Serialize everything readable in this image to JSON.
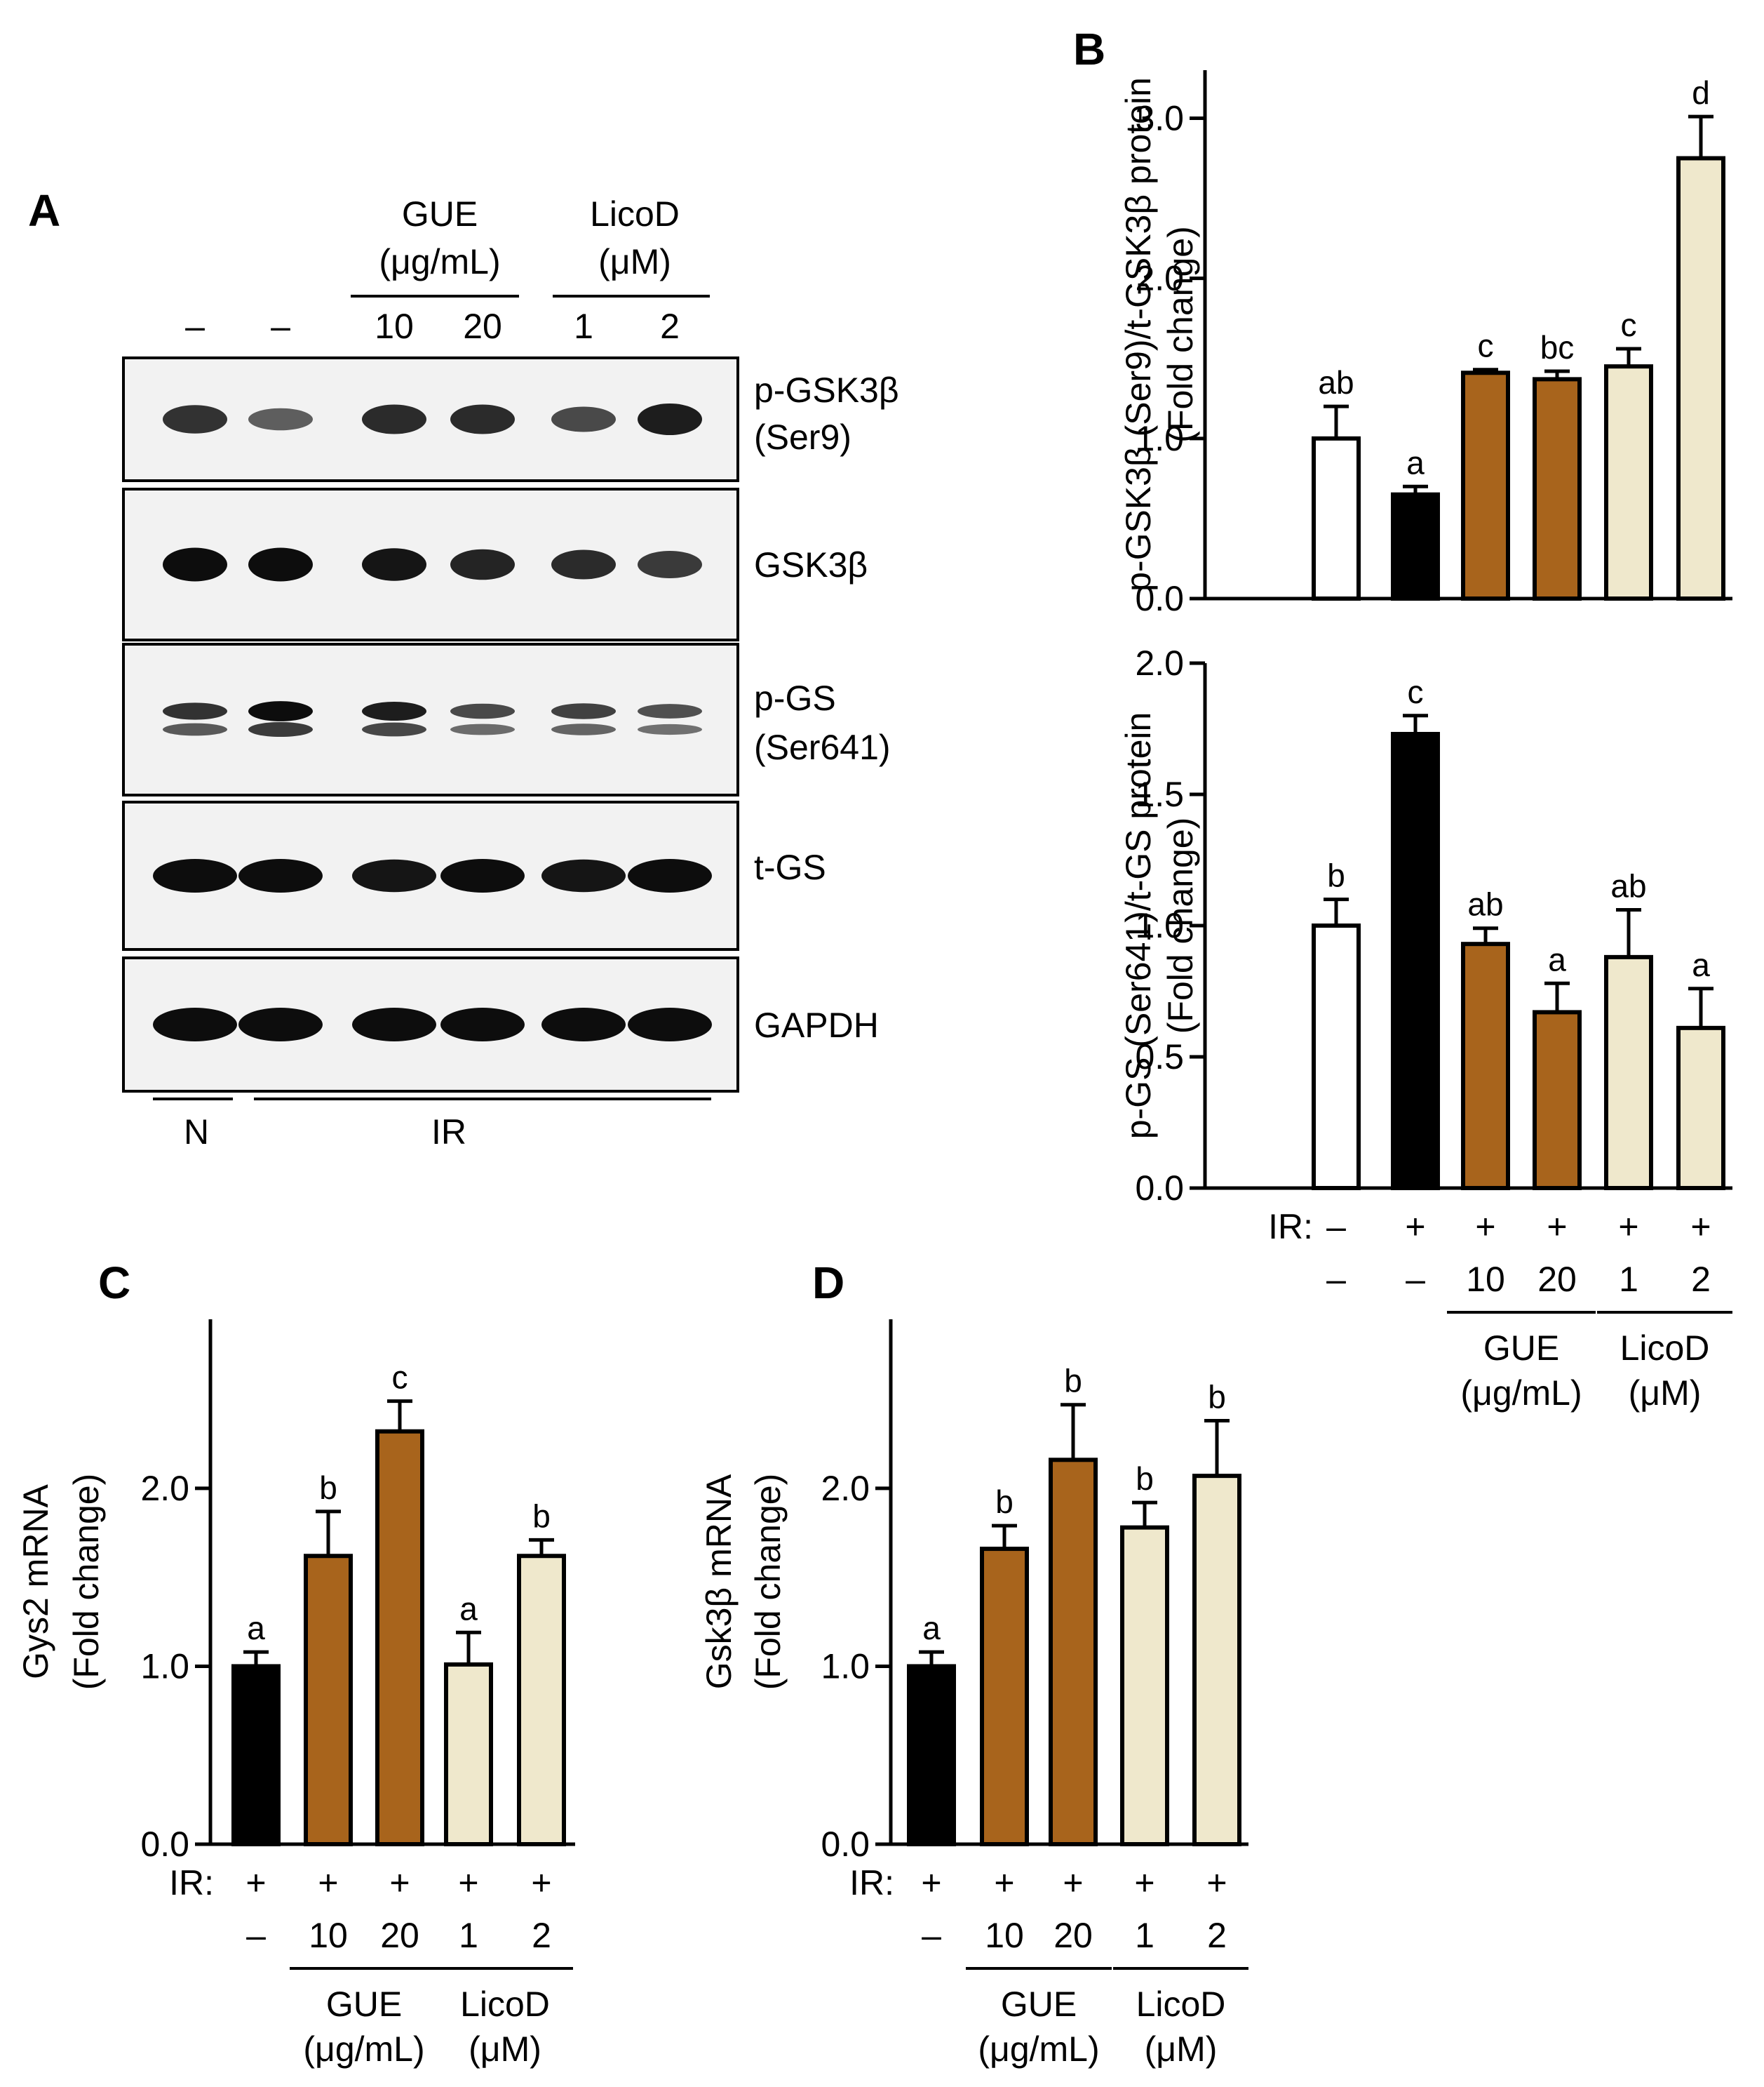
{
  "colors": {
    "normal": "#ffffff",
    "ir": "#000000",
    "gue": "#a8641c",
    "licod": "#efe8cc",
    "blot_bg": "#f2f2f2",
    "band": "#0d0d0d"
  },
  "panel_a": {
    "letter": "A",
    "gue_label": [
      "GUE",
      "(μg/mL)"
    ],
    "licod_label": [
      "LicoD",
      "(μM)"
    ],
    "lane_labels": [
      "–",
      "–",
      "10",
      "20",
      "1",
      "2"
    ],
    "blots": [
      {
        "name": "p-GSK3β",
        "sub": "(Ser9)",
        "intensity": [
          0.75,
          0.45,
          0.8,
          0.8,
          0.6,
          0.9
        ]
      },
      {
        "name": "GSK3β",
        "sub": "",
        "intensity": [
          1.0,
          1.0,
          0.95,
          0.85,
          0.8,
          0.7
        ]
      },
      {
        "name": "p-GS",
        "sub": "(Ser641)",
        "intensity": [
          0.75,
          1.0,
          0.9,
          0.6,
          0.65,
          0.55
        ]
      },
      {
        "name": "t-GS",
        "sub": "",
        "intensity": [
          1.0,
          1.0,
          0.95,
          1.0,
          0.95,
          1.0
        ]
      },
      {
        "name": "GAPDH",
        "sub": "",
        "intensity": [
          1.0,
          1.0,
          1.0,
          1.0,
          1.0,
          1.0
        ]
      }
    ],
    "group_n": "N",
    "group_ir": "IR"
  },
  "shared": {
    "ir_prefix": "IR:",
    "gue_label": [
      "GUE",
      "(μg/mL)"
    ],
    "licod_label": [
      "LicoD",
      "(μM)"
    ]
  },
  "chart_data": [
    {
      "panel": "B",
      "type": "bar",
      "ylabel": [
        "p-GSK3β (Ser9)/t-GSK3β protein",
        "(Fold change)"
      ],
      "ylim": [
        0,
        3.3
      ],
      "yticks": [
        "0.0",
        "1.0",
        "2.0",
        "3.0"
      ],
      "ytick_values": [
        0,
        1,
        2,
        3
      ],
      "categories": [
        "–",
        "–",
        "10",
        "20",
        "1",
        "2"
      ],
      "ir": [
        "–",
        "+",
        "+",
        "+",
        "+",
        "+"
      ],
      "values": [
        1.0,
        0.65,
        1.41,
        1.37,
        1.45,
        2.75
      ],
      "errors": [
        0.2,
        0.05,
        0.02,
        0.05,
        0.11,
        0.26
      ],
      "letters": [
        "ab",
        "a",
        "c",
        "bc",
        "c",
        "d"
      ],
      "colors": [
        "normal",
        "ir",
        "gue",
        "gue",
        "licod",
        "licod"
      ]
    },
    {
      "panel": "B2",
      "type": "bar",
      "ylabel": [
        "p-GS (Ser641)/t-GS protein",
        "(Fold change)"
      ],
      "ylim": [
        0,
        2.0
      ],
      "yticks": [
        "0.0",
        "0.5",
        "1.0",
        "1.5",
        "2.0"
      ],
      "ytick_values": [
        0,
        0.5,
        1.0,
        1.5,
        2.0
      ],
      "categories": [
        "–",
        "–",
        "10",
        "20",
        "1",
        "2"
      ],
      "ir": [
        "–",
        "+",
        "+",
        "+",
        "+",
        "+"
      ],
      "values": [
        1.0,
        1.73,
        0.93,
        0.67,
        0.88,
        0.61
      ],
      "errors": [
        0.1,
        0.07,
        0.06,
        0.11,
        0.18,
        0.15
      ],
      "letters": [
        "b",
        "c",
        "ab",
        "a",
        "ab",
        "a"
      ],
      "colors": [
        "normal",
        "ir",
        "gue",
        "gue",
        "licod",
        "licod"
      ]
    },
    {
      "panel": "C",
      "type": "bar",
      "ylabel": [
        "Gys2 mRNA",
        "(Fold change)"
      ],
      "ylim": [
        0,
        2.95
      ],
      "yticks": [
        "0.0",
        "1.0",
        "2.0"
      ],
      "ytick_values": [
        0,
        1,
        2
      ],
      "categories": [
        "–",
        "10",
        "20",
        "1",
        "2"
      ],
      "ir": [
        "+",
        "+",
        "+",
        "+",
        "+"
      ],
      "values": [
        1.0,
        1.62,
        2.32,
        1.01,
        1.62
      ],
      "errors": [
        0.08,
        0.25,
        0.17,
        0.18,
        0.09
      ],
      "letters": [
        "a",
        "b",
        "c",
        "a",
        "b"
      ],
      "colors": [
        "ir",
        "gue",
        "gue",
        "licod",
        "licod"
      ]
    },
    {
      "panel": "D",
      "type": "bar",
      "ylabel": [
        "Gsk3β mRNA",
        "(Fold change)"
      ],
      "ylim": [
        0,
        2.95
      ],
      "yticks": [
        "0.0",
        "1.0",
        "2.0"
      ],
      "ytick_values": [
        0,
        1,
        2
      ],
      "categories": [
        "–",
        "10",
        "20",
        "1",
        "2"
      ],
      "ir": [
        "+",
        "+",
        "+",
        "+",
        "+"
      ],
      "values": [
        1.0,
        1.66,
        2.16,
        1.78,
        2.07
      ],
      "errors": [
        0.08,
        0.13,
        0.31,
        0.14,
        0.31
      ],
      "letters": [
        "a",
        "b",
        "b",
        "b",
        "b"
      ],
      "colors": [
        "ir",
        "gue",
        "gue",
        "licod",
        "licod"
      ]
    }
  ]
}
